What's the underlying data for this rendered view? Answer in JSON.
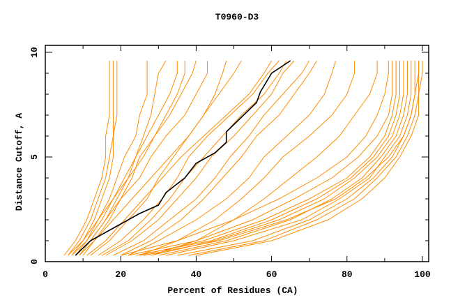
{
  "chart_data": {
    "type": "line",
    "title": "T0960-D3",
    "xlabel": "Percent of Residues (CA)",
    "ylabel": "Distance Cutoff, A",
    "xlim": [
      0,
      100
    ],
    "ylim": [
      0,
      10
    ],
    "x_ticks": [
      "0",
      "20",
      "40",
      "60",
      "80",
      "100"
    ],
    "y_ticks": [
      "0",
      "5",
      "10"
    ],
    "grid": false,
    "colors": {
      "models": "#ff8c00",
      "highlight": "#000000"
    },
    "y_levels": [
      0.3,
      1,
      2,
      3,
      4,
      5,
      6,
      7,
      8,
      9,
      9.6
    ],
    "highlight_series": {
      "name": "highlighted model",
      "points": [
        [
          8,
          0.3
        ],
        [
          12,
          1
        ],
        [
          18,
          1.6
        ],
        [
          25,
          2.3
        ],
        [
          30,
          2.7
        ],
        [
          32,
          3.3
        ],
        [
          37,
          4
        ],
        [
          40,
          4.7
        ],
        [
          45,
          5.2
        ],
        [
          48,
          5.7
        ],
        [
          48,
          6.2
        ],
        [
          52,
          6.9
        ],
        [
          56,
          7.6
        ],
        [
          57,
          8.1
        ],
        [
          60,
          9
        ],
        [
          65,
          9.6
        ]
      ]
    },
    "series": [
      [
        5,
        8,
        11,
        13,
        15,
        16,
        16,
        17,
        17,
        17,
        17
      ],
      [
        6,
        9,
        12,
        14,
        16,
        17,
        18,
        18,
        18,
        18,
        18
      ],
      [
        7,
        10,
        13,
        15,
        17,
        18,
        18,
        19,
        19,
        19,
        19
      ],
      [
        8,
        11,
        14,
        17,
        19,
        21,
        24,
        25,
        27,
        27,
        27
      ],
      [
        7,
        11,
        15,
        18,
        21,
        24,
        26,
        28,
        29,
        30,
        32
      ],
      [
        9,
        12,
        16,
        19,
        22,
        24,
        27,
        30,
        33,
        35,
        35
      ],
      [
        10,
        13,
        17,
        20,
        23,
        25,
        29,
        33,
        36,
        39,
        40
      ],
      [
        6,
        10,
        14,
        18,
        22,
        26,
        29,
        32,
        35,
        37,
        37
      ],
      [
        8,
        12,
        16,
        20,
        25,
        28,
        32,
        37,
        40,
        43,
        43
      ],
      [
        9,
        13,
        18,
        23,
        28,
        33,
        38,
        42,
        45,
        47,
        48
      ],
      [
        11,
        16,
        21,
        26,
        31,
        36,
        42,
        48,
        54,
        58,
        60
      ],
      [
        12,
        17,
        22,
        27,
        30,
        34,
        38,
        42,
        46,
        50,
        52
      ],
      [
        14,
        20,
        26,
        31,
        35,
        38,
        43,
        49,
        55,
        59,
        62
      ],
      [
        15,
        22,
        28,
        33,
        37,
        42,
        47,
        52,
        58,
        62,
        64
      ],
      [
        16,
        23,
        30,
        35,
        40,
        44,
        50,
        55,
        60,
        63,
        66
      ],
      [
        18,
        26,
        33,
        40,
        45,
        49,
        54,
        58,
        63,
        68,
        70
      ],
      [
        20,
        28,
        36,
        42,
        47,
        52,
        56,
        62,
        66,
        70,
        72
      ],
      [
        22,
        30,
        40,
        48,
        54,
        58,
        64,
        70,
        74,
        76,
        77
      ],
      [
        25,
        35,
        45,
        52,
        58,
        63,
        70,
        76,
        80,
        82,
        82
      ],
      [
        28,
        40,
        50,
        58,
        65,
        72,
        78,
        82,
        86,
        88,
        88
      ],
      [
        20,
        35,
        50,
        62,
        72,
        80,
        85,
        88,
        90,
        91,
        91
      ],
      [
        22,
        40,
        55,
        66,
        76,
        83,
        88,
        91,
        92,
        92,
        92
      ],
      [
        25,
        42,
        58,
        70,
        80,
        86,
        90,
        92,
        93,
        93,
        93
      ],
      [
        28,
        45,
        62,
        74,
        82,
        88,
        92,
        94,
        95,
        95,
        95
      ],
      [
        30,
        48,
        65,
        76,
        84,
        89,
        93,
        95,
        96,
        96,
        96
      ],
      [
        32,
        50,
        68,
        78,
        86,
        90,
        94,
        96,
        97,
        97,
        97
      ],
      [
        35,
        55,
        70,
        80,
        87,
        92,
        95,
        97,
        98,
        98,
        98
      ],
      [
        38,
        58,
        72,
        82,
        88,
        93,
        96,
        98,
        99,
        99,
        99
      ],
      [
        40,
        60,
        75,
        84,
        90,
        94,
        97,
        99,
        99,
        100,
        100
      ],
      [
        26,
        46,
        64,
        77,
        85,
        91,
        95,
        97,
        98,
        99,
        99
      ],
      [
        24,
        44,
        60,
        72,
        81,
        87,
        91,
        93,
        94,
        94,
        94
      ]
    ]
  }
}
